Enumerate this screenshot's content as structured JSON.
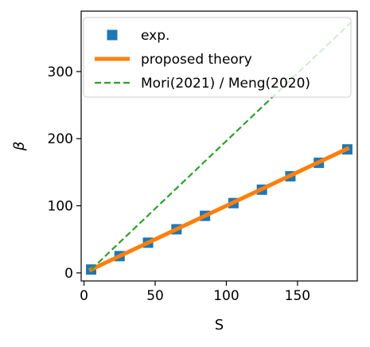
{
  "chart_data": {
    "type": "scatter",
    "title": "",
    "xlabel": "S",
    "ylabel": "β",
    "xlim": [
      -2,
      192
    ],
    "ylim": [
      -12,
      390
    ],
    "xticks": [
      0,
      50,
      100,
      150
    ],
    "yticks": [
      0,
      100,
      200,
      300
    ],
    "xtick_labels": [
      "0",
      "50",
      "100",
      "150"
    ],
    "ytick_labels": [
      "0",
      "100",
      "200",
      "300"
    ],
    "grid": false,
    "legend_position": "upper left",
    "series": [
      {
        "name": "exp.",
        "kind": "markers",
        "marker": "square",
        "color": "#1f77b4",
        "x": [
          5,
          25,
          45,
          65,
          85,
          105,
          125,
          145,
          165,
          185
        ],
        "y": [
          5,
          25,
          45,
          65,
          85,
          104,
          124,
          144,
          164,
          184
        ]
      },
      {
        "name": "proposed theory",
        "kind": "line",
        "style": "solid",
        "color": "#ff7f0e",
        "x": [
          5,
          185
        ],
        "y": [
          5,
          185
        ]
      },
      {
        "name": "Mori(2021) / Meng(2020)",
        "kind": "line",
        "style": "dashed",
        "color": "#2ca02c",
        "x": [
          5,
          187
        ],
        "y": [
          5,
          372
        ]
      }
    ]
  }
}
